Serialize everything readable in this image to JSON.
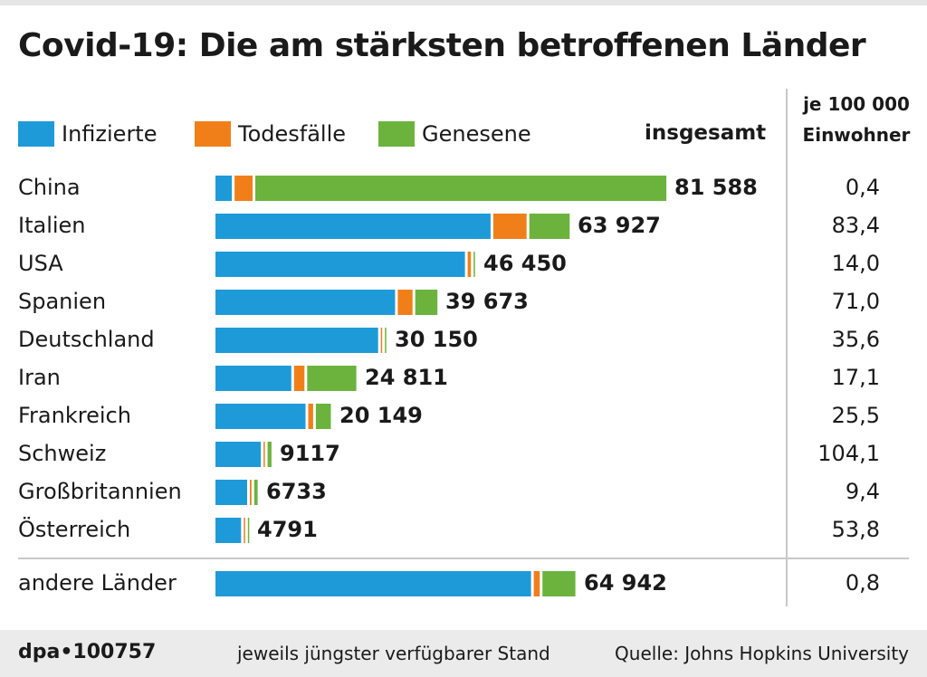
{
  "title": "Covid-19: Die am stärksten betroffenen Länder",
  "colors": {
    "infected": "#1f9ad9",
    "deaths": "#f07f1a",
    "recovered": "#6cb33e"
  },
  "legend": {
    "infected": "Infizierte",
    "deaths": "Todesfälle",
    "recovered": "Genesene"
  },
  "header": {
    "total": "insgesamt",
    "per_line1": "je 100 000",
    "per_line2": "Einwohner"
  },
  "chart_data": {
    "type": "bar",
    "orientation": "horizontal",
    "stacked": true,
    "title": "Covid-19: Die am stärksten betroffenen Länder",
    "categories": [
      "China",
      "Italien",
      "USA",
      "Spanien",
      "Deutschland",
      "Iran",
      "Frankreich",
      "Schweiz",
      "Großbritannien",
      "Österreich",
      "andere Länder"
    ],
    "series": [
      {
        "name": "Infizierte",
        "values": [
          3000,
          50400,
          45700,
          32900,
          29800,
          13900,
          16500,
          8300,
          5800,
          4700,
          57800
        ]
      },
      {
        "name": "Todesfälle",
        "values": [
          3300,
          6100,
          600,
          2700,
          100,
          1900,
          900,
          100,
          300,
          30,
          1100
        ]
      },
      {
        "name": "Genesene",
        "values": [
          75300,
          7400,
          150,
          4070,
          250,
          9011,
          2749,
          717,
          633,
          61,
          6042
        ]
      }
    ],
    "totals": [
      "81 588",
      "63 927",
      "46 450",
      "39 673",
      "30 150",
      "24 811",
      "20 149",
      "9117",
      "6733",
      "4791",
      "64 942"
    ],
    "per_100000": [
      "0,4",
      "83,4",
      "14,0",
      "71,0",
      "35,6",
      "17,1",
      "25,5",
      "104,1",
      "9,4",
      "53,8",
      "0,8"
    ],
    "xlim": [
      0,
      81588
    ]
  },
  "footer": {
    "logo": "dpa•100757",
    "note": "jeweils jüngster verfügbarer Stand",
    "source": "Quelle: Johns Hopkins University"
  }
}
